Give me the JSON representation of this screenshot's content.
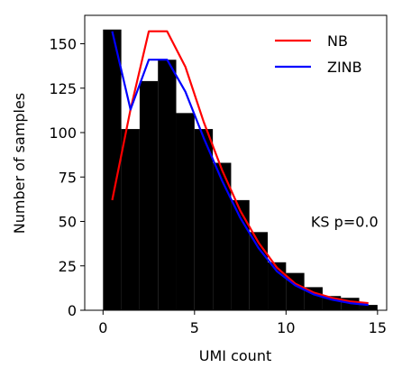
{
  "chart_data": {
    "type": "bar",
    "title": "",
    "xlabel": "UMI count",
    "ylabel": "Number of samples",
    "xlim": [
      -1,
      15.5
    ],
    "ylim": [
      0,
      166
    ],
    "xticks": [
      0,
      5,
      10,
      15
    ],
    "yticks": [
      0,
      25,
      50,
      75,
      100,
      125,
      150
    ],
    "bins": [
      {
        "x0": 0,
        "x1": 1,
        "count": 158
      },
      {
        "x0": 1,
        "x1": 2,
        "count": 102
      },
      {
        "x0": 2,
        "x1": 3,
        "count": 129
      },
      {
        "x0": 3,
        "x1": 4,
        "count": 141
      },
      {
        "x0": 4,
        "x1": 5,
        "count": 111
      },
      {
        "x0": 5,
        "x1": 6,
        "count": 102
      },
      {
        "x0": 6,
        "x1": 7,
        "count": 83
      },
      {
        "x0": 7,
        "x1": 8,
        "count": 62
      },
      {
        "x0": 8,
        "x1": 9,
        "count": 44
      },
      {
        "x0": 9,
        "x1": 10,
        "count": 27
      },
      {
        "x0": 10,
        "x1": 11,
        "count": 21
      },
      {
        "x0": 11,
        "x1": 12,
        "count": 13
      },
      {
        "x0": 12,
        "x1": 13,
        "count": 8
      },
      {
        "x0": 13,
        "x1": 14,
        "count": 7
      },
      {
        "x0": 14,
        "x1": 15,
        "count": 3
      }
    ],
    "bar_color": "#000000",
    "series": [
      {
        "name": "NB",
        "color": "#ff0000",
        "x": [
          0.5,
          1.5,
          2.5,
          3.5,
          4.5,
          5.5,
          6.5,
          7.5,
          8.5,
          9.5,
          10.5,
          11.5,
          12.5,
          13.5,
          14.5
        ],
        "y": [
          62,
          113,
          157,
          157,
          137,
          106,
          79,
          56,
          38,
          24,
          15,
          10,
          7,
          5,
          4
        ]
      },
      {
        "name": "ZINB",
        "color": "#0000ff",
        "x": [
          0.5,
          1.5,
          2.5,
          3.5,
          4.5,
          5.5,
          6.5,
          7.5,
          8.5,
          9.5,
          10.5,
          11.5,
          12.5,
          13.5,
          14.5
        ],
        "y": [
          157,
          113,
          141,
          141,
          123,
          97,
          73,
          52,
          35,
          22,
          14,
          9,
          6,
          4,
          3
        ]
      }
    ],
    "legend": {
      "placement": "top-right",
      "entries": [
        "NB",
        "ZINB"
      ]
    },
    "annotations": [
      {
        "text": "KS p=0.0",
        "x": 13.2,
        "y": 50
      }
    ],
    "grid": false
  }
}
